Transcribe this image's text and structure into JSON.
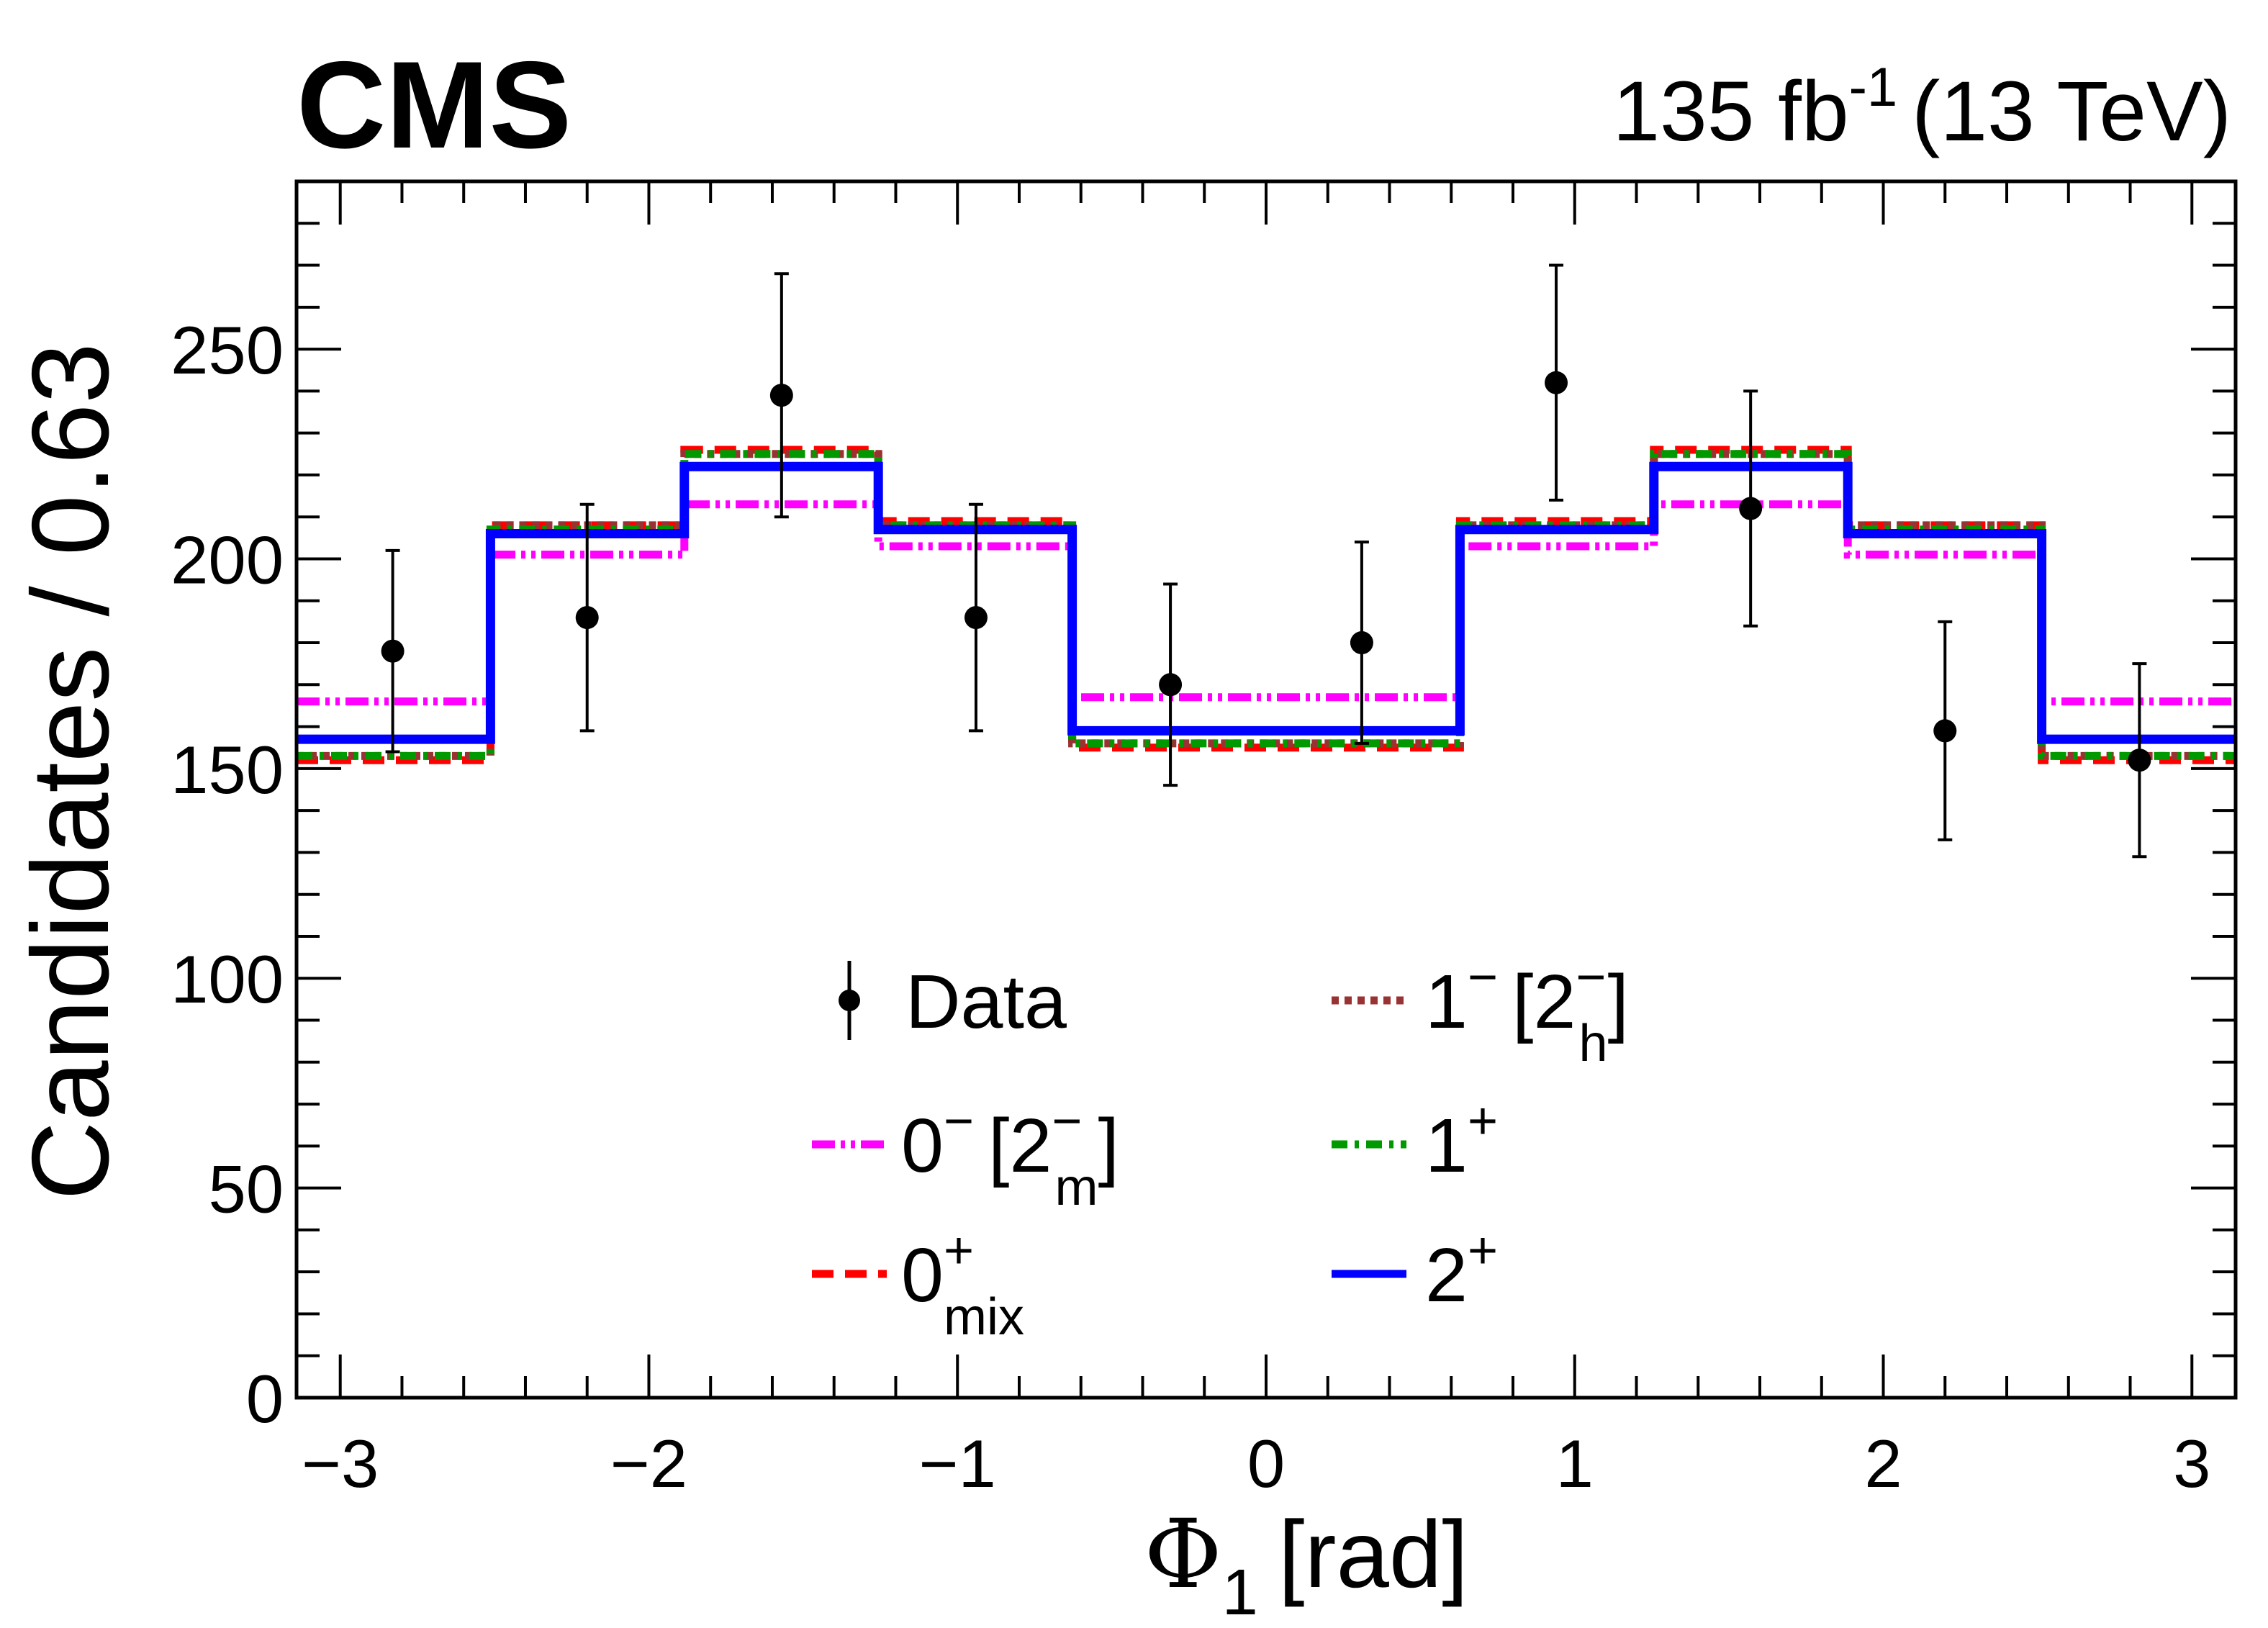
{
  "header": {
    "experiment": "CMS",
    "lumi_value": "135 fb",
    "lumi_exponent": "-1",
    "energy": "(13 TeV)"
  },
  "chart_data": {
    "type": "histogram",
    "xlabel_symbol": "Φ",
    "xlabel_subscript": "1",
    "xlabel_unit": "[rad]",
    "ylabel": "Candidates / 0.63",
    "xlim": [
      -3.14159,
      3.14159
    ],
    "ylim": [
      0,
      290
    ],
    "x_ticks": [
      -3,
      -2,
      -1,
      0,
      1,
      2,
      3
    ],
    "x_tick_labels": [
      "−3",
      "−2",
      "−1",
      "0",
      "1",
      "2",
      "3"
    ],
    "y_ticks": [
      0,
      50,
      100,
      150,
      200,
      250
    ],
    "y_tick_labels": [
      "0",
      "50",
      "100",
      "150",
      "200",
      "250"
    ],
    "bin_edges": [
      -3.14159,
      -2.51327,
      -1.88496,
      -1.25664,
      -0.62832,
      0,
      0.62832,
      1.25664,
      1.88496,
      2.51327,
      3.14159
    ],
    "series": [
      {
        "key": "zero-minus",
        "color": "#ff00ff",
        "dash": "dashdotdot",
        "values": [
          166,
          201,
          213,
          203,
          167,
          167,
          203,
          213,
          201,
          166
        ]
      },
      {
        "key": "zero-plus-mix",
        "color": "#ff0000",
        "dash": "dashed",
        "values": [
          152,
          208,
          226,
          209,
          155,
          155,
          209,
          226,
          208,
          152
        ]
      },
      {
        "key": "one-minus",
        "color": "#993333",
        "dash": "dotted",
        "values": [
          153,
          208,
          225,
          208,
          156,
          156,
          208,
          225,
          208,
          153
        ]
      },
      {
        "key": "one-plus",
        "color": "#009900",
        "dash": "dashdot",
        "values": [
          153,
          207,
          225,
          208,
          156,
          156,
          208,
          225,
          207,
          153
        ]
      },
      {
        "key": "two-plus",
        "color": "#0000ff",
        "dash": "solid",
        "values": [
          157,
          206,
          222,
          207,
          159,
          159,
          207,
          222,
          206,
          157
        ]
      }
    ],
    "data_points": {
      "x": [
        -2.83,
        -2.2,
        -1.57,
        -0.94,
        -0.31,
        0.31,
        0.94,
        1.57,
        2.2,
        2.83
      ],
      "y": [
        178,
        186,
        239,
        186,
        170,
        180,
        242,
        212,
        159,
        152
      ],
      "err": [
        24,
        27,
        29,
        27,
        24,
        24,
        28,
        28,
        26,
        23
      ]
    },
    "legend": {
      "data": {
        "label": "Data"
      },
      "zero_minus": {
        "main": "0",
        "sup": "−",
        "bracket": "[2",
        "bsup": "−",
        "bsub": "m",
        "close": "]"
      },
      "zero_plus_mix": {
        "main": "0",
        "sup": "+",
        "sub": "mix"
      },
      "one_minus": {
        "main": "1",
        "sup": "−",
        "bracket": "[2",
        "bsup": "−",
        "bsub": "h",
        "close": "]"
      },
      "one_plus": {
        "main": "1",
        "sup": "+"
      },
      "two_plus": {
        "main": "2",
        "sup": "+"
      }
    }
  }
}
